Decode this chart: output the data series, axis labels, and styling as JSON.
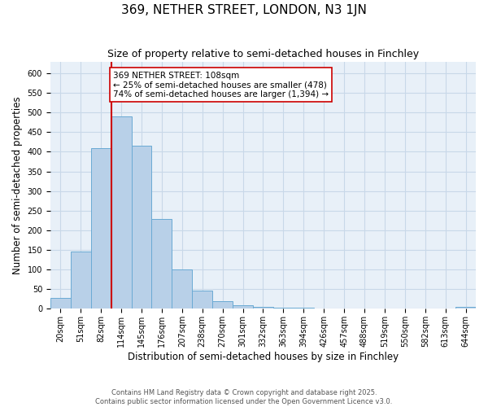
{
  "title_line1": "369, NETHER STREET, LONDON, N3 1JN",
  "title_line2": "Size of property relative to semi-detached houses in Finchley",
  "xlabel": "Distribution of semi-detached houses by size in Finchley",
  "ylabel": "Number of semi-detached properties",
  "categories": [
    "20sqm",
    "51sqm",
    "82sqm",
    "114sqm",
    "145sqm",
    "176sqm",
    "207sqm",
    "238sqm",
    "270sqm",
    "301sqm",
    "332sqm",
    "363sqm",
    "394sqm",
    "426sqm",
    "457sqm",
    "488sqm",
    "519sqm",
    "550sqm",
    "582sqm",
    "613sqm",
    "644sqm"
  ],
  "values": [
    28,
    145,
    410,
    490,
    415,
    228,
    100,
    47,
    20,
    10,
    5,
    3,
    2,
    1,
    0,
    0,
    0,
    0,
    0,
    0,
    5
  ],
  "bar_color": "#b8d0e8",
  "bar_edge_color": "#6aaad4",
  "grid_color": "#c8d8e8",
  "background_color": "#e8f0f8",
  "vline_x_index": 3,
  "vline_color": "#cc0000",
  "annotation_text": "369 NETHER STREET: 108sqm\n← 25% of semi-detached houses are smaller (478)\n74% of semi-detached houses are larger (1,394) →",
  "annotation_box_color": "#ffffff",
  "annotation_box_edge": "#cc0000",
  "ylim": [
    0,
    630
  ],
  "yticks": [
    0,
    50,
    100,
    150,
    200,
    250,
    300,
    350,
    400,
    450,
    500,
    550,
    600
  ],
  "footnote": "Contains HM Land Registry data © Crown copyright and database right 2025.\nContains public sector information licensed under the Open Government Licence v3.0.",
  "title_fontsize": 11,
  "subtitle_fontsize": 9,
  "tick_fontsize": 7,
  "label_fontsize": 8.5,
  "annotation_fontsize": 7.5
}
